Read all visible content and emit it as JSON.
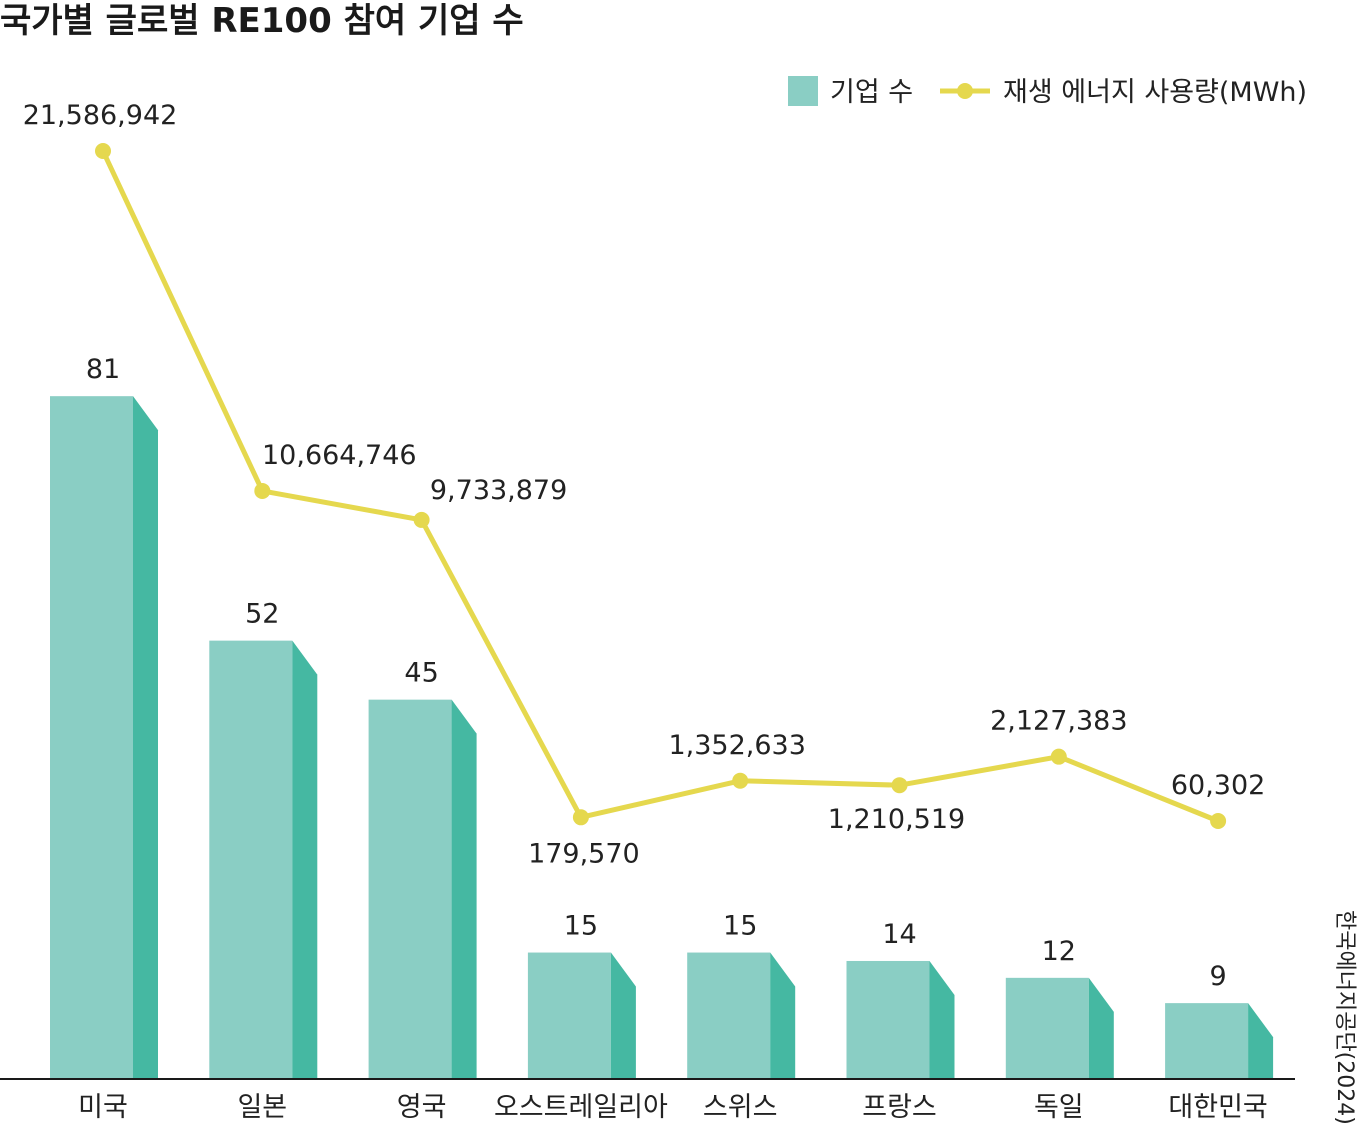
{
  "chart_data": {
    "type": "bar",
    "title": "국가별 글로벌 RE100 참여 기업 수",
    "categories": [
      "미국",
      "일본",
      "영국",
      "오스트레일리아",
      "스위스",
      "프랑스",
      "독일",
      "대한민국"
    ],
    "series": [
      {
        "name": "기업 수",
        "type": "bar",
        "values": [
          81,
          52,
          45,
          15,
          15,
          14,
          12,
          9
        ],
        "color": "#8ACEC4",
        "side_color": "#45B8A2"
      },
      {
        "name": "재생 에너지 사용량(MWh)",
        "type": "line",
        "values": [
          21586942,
          10664746,
          9733879,
          179570,
          1352633,
          1210519,
          2127383,
          60302
        ],
        "labels": [
          "21,586,942",
          "10,664,746",
          "9,733,879",
          "179,570",
          "1,352,633",
          "1,210,519",
          "2,127,383",
          "60,302"
        ],
        "color": "#E5D84E"
      }
    ],
    "bar_labels": [
      "81",
      "52",
      "45",
      "15",
      "15",
      "14",
      "12",
      "9"
    ],
    "legend_position": "top-right",
    "grid": false
  },
  "source": "한국에너지공단(2024)"
}
